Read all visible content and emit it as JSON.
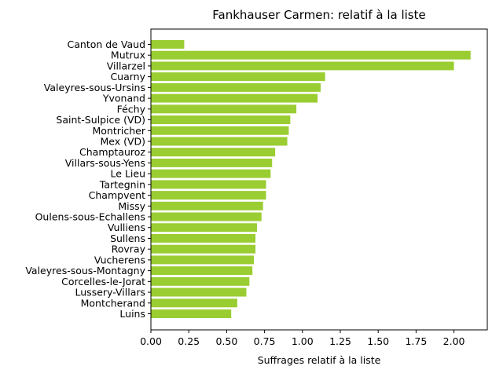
{
  "chart_data": {
    "type": "bar",
    "orientation": "horizontal",
    "title": "Fankhauser Carmen: relatif à la liste",
    "xlabel": "Suffrages relatif à la liste",
    "ylabel": "",
    "bar_color": "#9acd32",
    "xlim": [
      0,
      2.22
    ],
    "xticks": [
      "0.00",
      "0.25",
      "0.50",
      "0.75",
      "1.00",
      "1.25",
      "1.50",
      "1.75",
      "2.00"
    ],
    "grid": false,
    "categories": [
      "Canton de Vaud",
      "Mutrux",
      "Villarzel",
      "Cuarny",
      "Valeyres-sous-Ursins",
      "Yvonand",
      "Féchy",
      "Saint-Sulpice (VD)",
      "Montricher",
      "Mex (VD)",
      "Champtauroz",
      "Villars-sous-Yens",
      "Le Lieu",
      "Tartegnin",
      "Champvent",
      "Missy",
      "Oulens-sous-Echallens",
      "Vulliens",
      "Sullens",
      "Rovray",
      "Vucherens",
      "Valeyres-sous-Montagny",
      "Corcelles-le-Jorat",
      "Lussery-Villars",
      "Montcherand",
      "Luins"
    ],
    "values": [
      0.22,
      2.11,
      2.0,
      1.15,
      1.12,
      1.1,
      0.96,
      0.92,
      0.91,
      0.9,
      0.82,
      0.8,
      0.79,
      0.76,
      0.76,
      0.74,
      0.73,
      0.7,
      0.69,
      0.69,
      0.68,
      0.67,
      0.65,
      0.63,
      0.57,
      0.53
    ]
  }
}
